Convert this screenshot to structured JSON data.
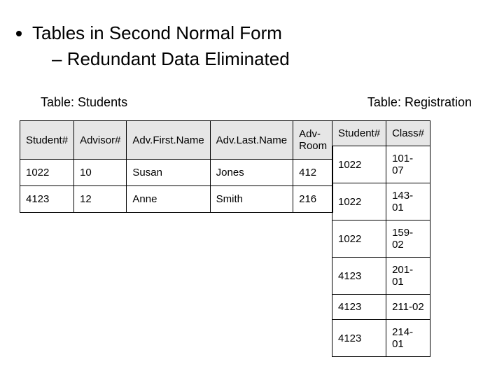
{
  "bullets": {
    "main": "Tables in Second Normal Form",
    "sub": "Redundant Data Eliminated"
  },
  "labels": {
    "students": "Table: Students",
    "registration": "Table: Registration"
  },
  "students_table": {
    "columns": [
      "Student#",
      "Advisor#",
      "Adv.First.Name",
      "Adv.Last.Name",
      "Adv-Room"
    ],
    "rows": [
      [
        "1022",
        "10",
        "Susan",
        "Jones",
        "412"
      ],
      [
        "4123",
        "12",
        "Anne",
        "Smith",
        "216"
      ]
    ]
  },
  "registration_table": {
    "columns": [
      "Student#",
      "Class#"
    ],
    "rows": [
      [
        "1022",
        "101-07"
      ],
      [
        "1022",
        "143-01"
      ],
      [
        "1022",
        "159-02"
      ],
      [
        "4123",
        "201-01"
      ],
      [
        "4123",
        "211-02"
      ],
      [
        "4123",
        "214-01"
      ]
    ]
  },
  "style": {
    "background_color": "#ffffff",
    "text_color": "#000000",
    "header_bg": "#e6e6e6",
    "border_color": "#000000",
    "bullet_fontsize": 26,
    "table_fontsize": 15,
    "label_fontsize": 18
  }
}
